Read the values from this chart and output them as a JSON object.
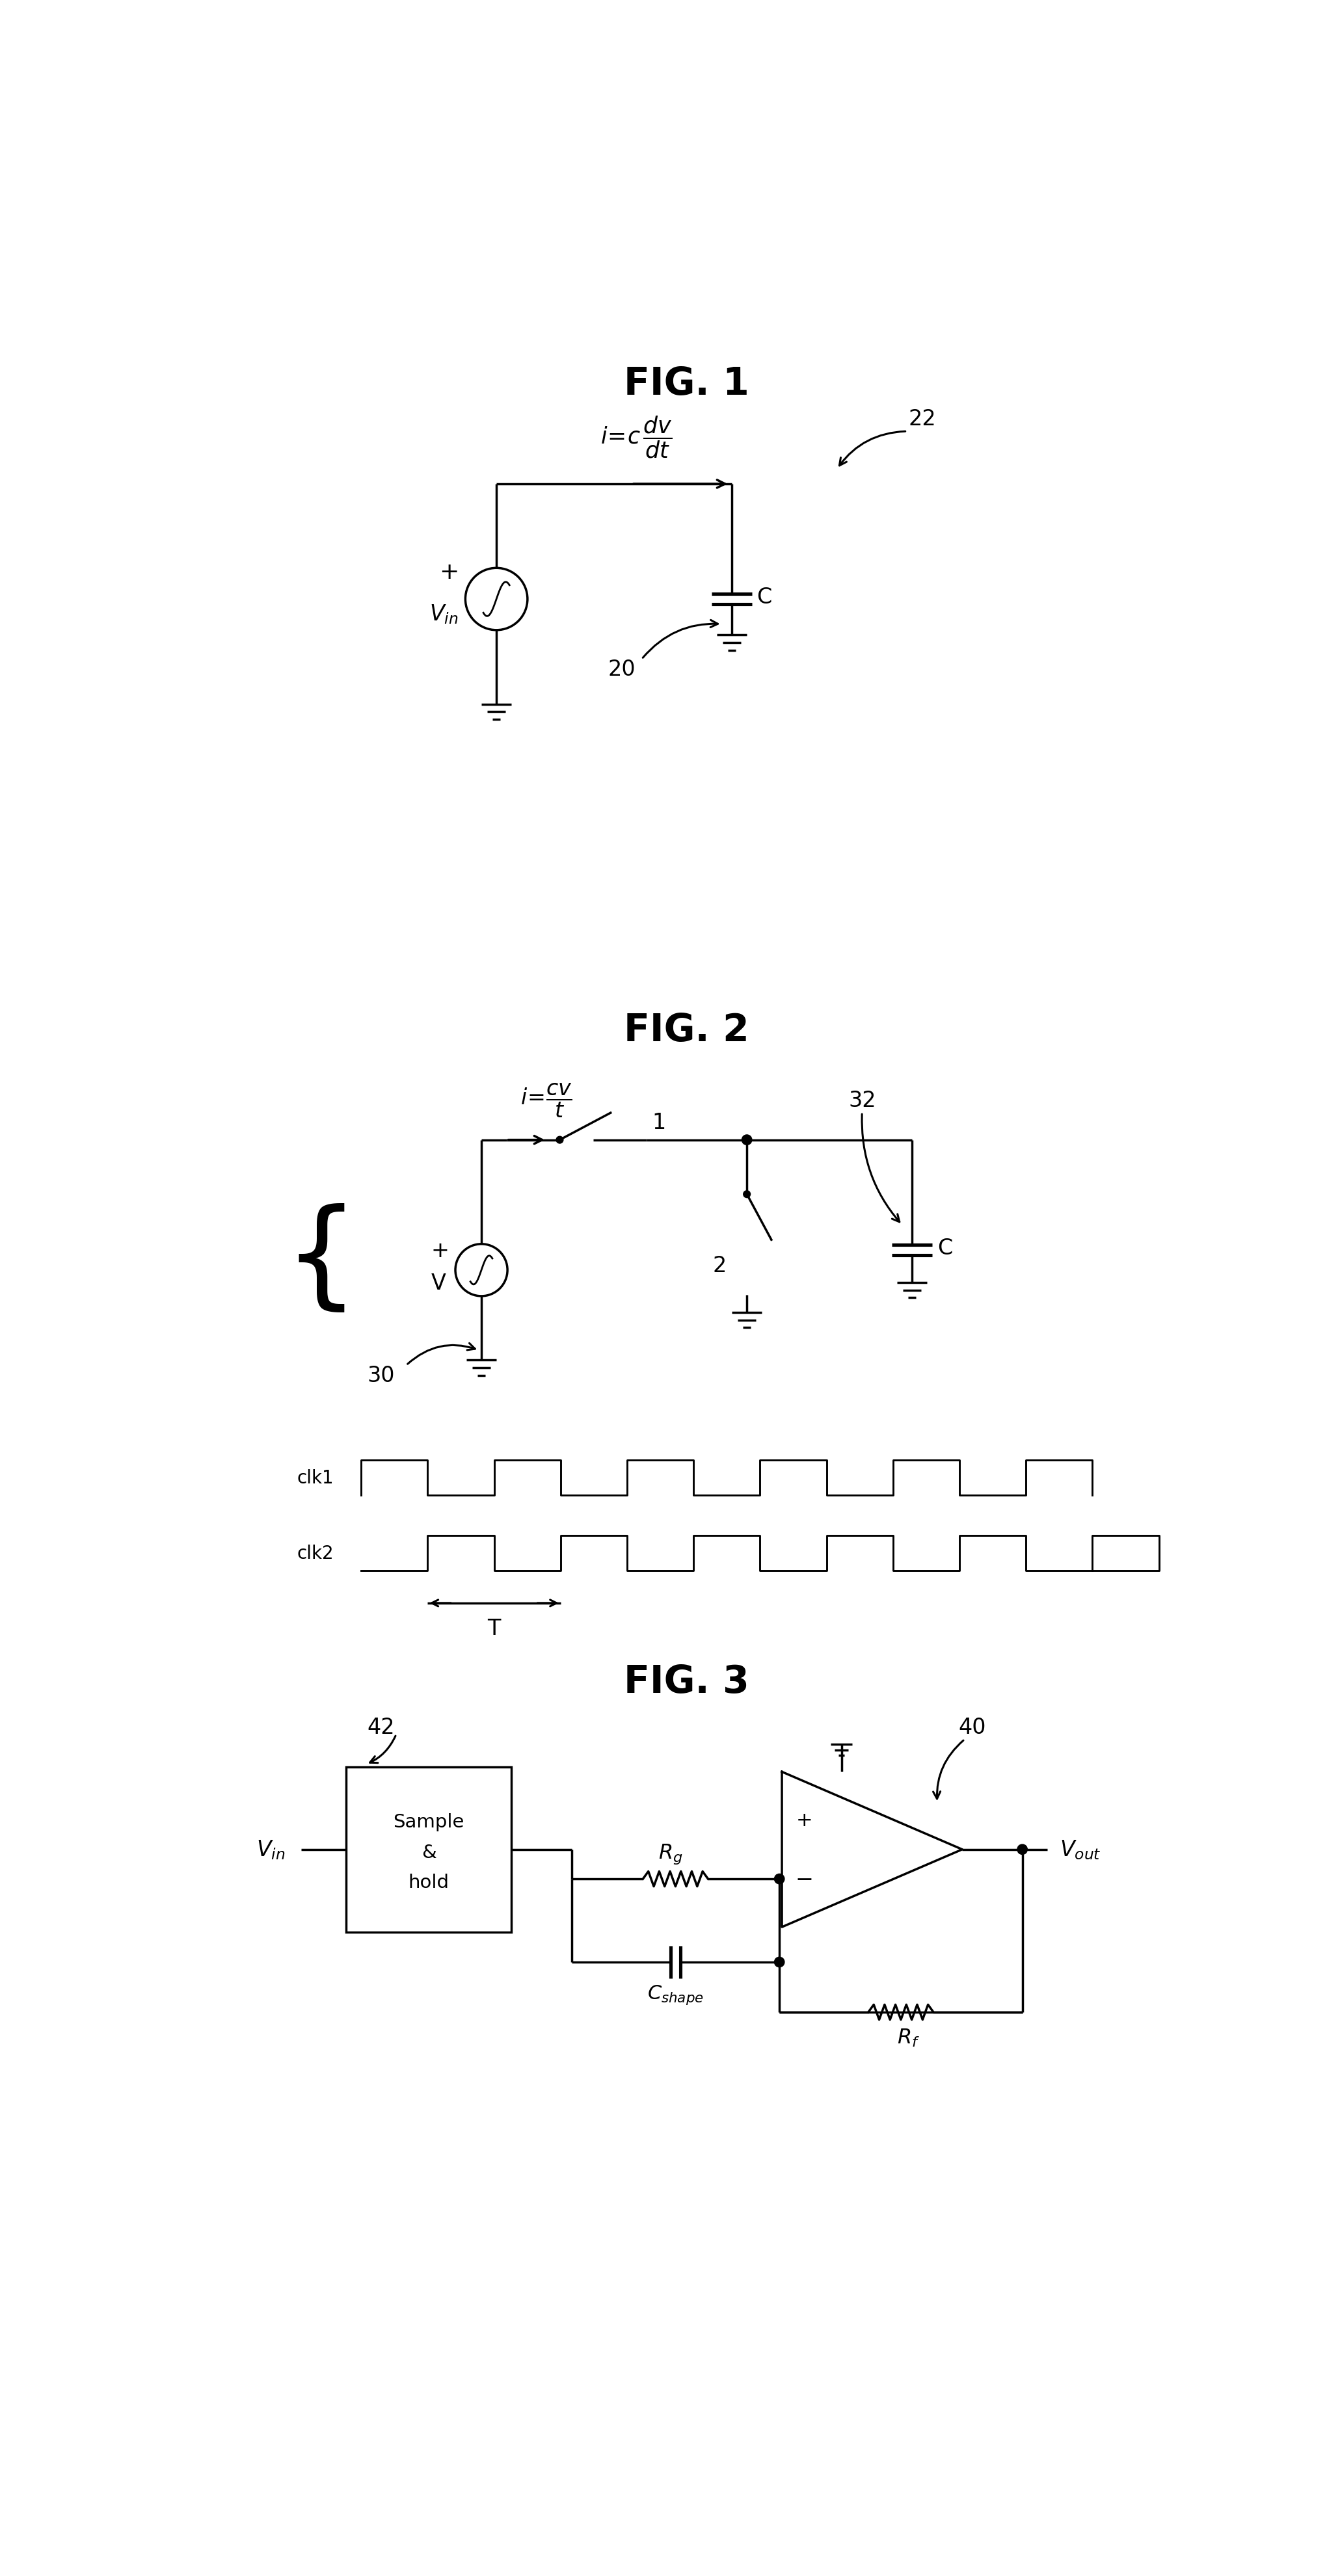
{
  "bg_color": "#ffffff",
  "line_color": "#000000",
  "fig_width": 20.6,
  "fig_height": 39.62,
  "fig1_title": "FIG. 1",
  "fig2_title": "FIG. 2",
  "fig3_title": "FIG. 3"
}
